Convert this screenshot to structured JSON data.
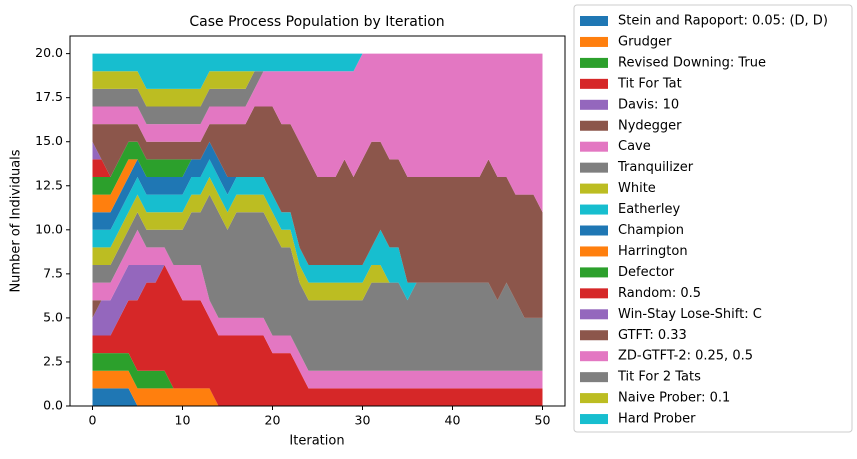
{
  "chart_data": {
    "type": "stackplot",
    "title": "Case Process Population by Iteration",
    "xlabel": "Iteration",
    "ylabel": "Number of Individuals",
    "legend": "outside right",
    "x": [
      0,
      1,
      2,
      3,
      4,
      5,
      6,
      7,
      8,
      9,
      10,
      11,
      12,
      13,
      14,
      15,
      16,
      17,
      18,
      19,
      20,
      21,
      22,
      23,
      24,
      25,
      26,
      27,
      28,
      29,
      30,
      31,
      32,
      33,
      34,
      35,
      36,
      37,
      38,
      39,
      40,
      41,
      42,
      43,
      44,
      45,
      46,
      47,
      48,
      49,
      50
    ],
    "xlim": [
      -2.5,
      52.5
    ],
    "xticks": [
      0,
      10,
      20,
      30,
      40,
      50
    ],
    "ylim": [
      0,
      21
    ],
    "yticks": [
      {
        "value": 0,
        "label": "0.0"
      },
      {
        "value": 2.5,
        "label": "2.5"
      },
      {
        "value": 5,
        "label": "5.0"
      },
      {
        "value": 7.5,
        "label": "7.5"
      },
      {
        "value": 10,
        "label": "10.0"
      },
      {
        "value": 12.5,
        "label": "12.5"
      },
      {
        "value": 15,
        "label": "15.0"
      },
      {
        "value": 17.5,
        "label": "17.5"
      },
      {
        "value": 20,
        "label": "20.0"
      }
    ],
    "series": [
      {
        "name": "Stein and Rapoport: 0.05: (D, D)",
        "color": "#1f77b4",
        "values": [
          1,
          1,
          1,
          1,
          1,
          0,
          0,
          0,
          0,
          0,
          0,
          0,
          0,
          0,
          0,
          0,
          0,
          0,
          0,
          0,
          0,
          0,
          0,
          0,
          0,
          0,
          0,
          0,
          0,
          0,
          0,
          0,
          0,
          0,
          0,
          0,
          0,
          0,
          0,
          0,
          0,
          0,
          0,
          0,
          0,
          0,
          0,
          0,
          0,
          0,
          0
        ]
      },
      {
        "name": "Grudger",
        "color": "#ff7f0e",
        "values": [
          1,
          1,
          1,
          1,
          1,
          1,
          1,
          1,
          1,
          1,
          1,
          1,
          1,
          1,
          0,
          0,
          0,
          0,
          0,
          0,
          0,
          0,
          0,
          0,
          0,
          0,
          0,
          0,
          0,
          0,
          0,
          0,
          0,
          0,
          0,
          0,
          0,
          0,
          0,
          0,
          0,
          0,
          0,
          0,
          0,
          0,
          0,
          0,
          0,
          0,
          0
        ]
      },
      {
        "name": "Revised Downing: True",
        "color": "#2ca02c",
        "values": [
          1,
          1,
          1,
          1,
          1,
          1,
          1,
          1,
          1,
          0,
          0,
          0,
          0,
          0,
          0,
          0,
          0,
          0,
          0,
          0,
          0,
          0,
          0,
          0,
          0,
          0,
          0,
          0,
          0,
          0,
          0,
          0,
          0,
          0,
          0,
          0,
          0,
          0,
          0,
          0,
          0,
          0,
          0,
          0,
          0,
          0,
          0,
          0,
          0,
          0,
          0
        ]
      },
      {
        "name": "Tit For Tat",
        "color": "#d62728",
        "values": [
          1,
          1,
          1,
          2,
          3,
          4,
          5,
          5,
          6,
          6,
          5,
          5,
          5,
          4,
          4,
          4,
          4,
          4,
          4,
          4,
          3,
          3,
          3,
          2,
          1,
          1,
          1,
          1,
          1,
          1,
          1,
          1,
          1,
          1,
          1,
          1,
          1,
          1,
          1,
          1,
          1,
          1,
          1,
          1,
          1,
          1,
          1,
          1,
          1,
          1,
          1
        ]
      },
      {
        "name": "Davis: 10",
        "color": "#9467bd",
        "values": [
          1,
          2,
          2,
          2,
          2,
          2,
          1,
          1,
          0,
          0,
          0,
          0,
          0,
          0,
          0,
          0,
          0,
          0,
          0,
          0,
          0,
          0,
          0,
          0,
          0,
          0,
          0,
          0,
          0,
          0,
          0,
          0,
          0,
          0,
          0,
          0,
          0,
          0,
          0,
          0,
          0,
          0,
          0,
          0,
          0,
          0,
          0,
          0,
          0,
          0,
          0
        ]
      },
      {
        "name": "Nydegger",
        "color": "#8c564b",
        "values": [
          1,
          0,
          0,
          0,
          0,
          0,
          0,
          0,
          0,
          0,
          0,
          0,
          0,
          0,
          0,
          0,
          0,
          0,
          0,
          0,
          0,
          0,
          0,
          0,
          0,
          0,
          0,
          0,
          0,
          0,
          0,
          0,
          0,
          0,
          0,
          0,
          0,
          0,
          0,
          0,
          0,
          0,
          0,
          0,
          0,
          0,
          0,
          0,
          0,
          0,
          0
        ]
      },
      {
        "name": "Cave",
        "color": "#e377c2",
        "values": [
          1,
          1,
          1,
          1,
          1,
          2,
          1,
          1,
          1,
          1,
          2,
          2,
          2,
          1,
          1,
          1,
          1,
          1,
          1,
          1,
          1,
          1,
          1,
          1,
          1,
          1,
          1,
          1,
          1,
          1,
          1,
          1,
          1,
          1,
          1,
          1,
          1,
          1,
          1,
          1,
          1,
          1,
          1,
          1,
          1,
          1,
          1,
          1,
          1,
          1,
          1
        ]
      },
      {
        "name": "Tranquilizer",
        "color": "#7f7f7f",
        "values": [
          1,
          1,
          1,
          1,
          1,
          1,
          1,
          1,
          1,
          2,
          2,
          3,
          3,
          6,
          6,
          5,
          6,
          6,
          6,
          6,
          6,
          5,
          5,
          4,
          4,
          4,
          4,
          4,
          4,
          4,
          4,
          5,
          5,
          5,
          5,
          4,
          5,
          5,
          5,
          5,
          5,
          5,
          5,
          5,
          5,
          4,
          5,
          4,
          3,
          3,
          3
        ]
      },
      {
        "name": "White",
        "color": "#bcbd22",
        "values": [
          1,
          1,
          1,
          1,
          1,
          1,
          1,
          1,
          1,
          1,
          1,
          1,
          1,
          1,
          1,
          1,
          1,
          1,
          1,
          1,
          1,
          1,
          1,
          1,
          1,
          1,
          1,
          1,
          1,
          1,
          1,
          1,
          1,
          0,
          0,
          0,
          0,
          0,
          0,
          0,
          0,
          0,
          0,
          0,
          0,
          0,
          0,
          0,
          0,
          0,
          0
        ]
      },
      {
        "name": "Eatherley",
        "color": "#17becf",
        "values": [
          1,
          1,
          1,
          1,
          1,
          1,
          1,
          1,
          1,
          1,
          1,
          1,
          1,
          1,
          1,
          1,
          1,
          1,
          1,
          1,
          1,
          1,
          1,
          1,
          1,
          1,
          1,
          1,
          1,
          1,
          1,
          1,
          2,
          2,
          2,
          1,
          0,
          0,
          0,
          0,
          0,
          0,
          0,
          0,
          0,
          0,
          0,
          0,
          0,
          0,
          0
        ]
      },
      {
        "name": "Champion",
        "color": "#1f77b4",
        "values": [
          1,
          1,
          1,
          1,
          1,
          1,
          1,
          1,
          1,
          1,
          1,
          1,
          1,
          1,
          1,
          1,
          0,
          0,
          0,
          0,
          0,
          0,
          0,
          0,
          0,
          0,
          0,
          0,
          0,
          0,
          0,
          0,
          0,
          0,
          0,
          0,
          0,
          0,
          0,
          0,
          0,
          0,
          0,
          0,
          0,
          0,
          0,
          0,
          0,
          0,
          0
        ]
      },
      {
        "name": "Harrington",
        "color": "#ff7f0e",
        "values": [
          1,
          1,
          1,
          1,
          1,
          0,
          0,
          0,
          0,
          0,
          0,
          0,
          0,
          0,
          0,
          0,
          0,
          0,
          0,
          0,
          0,
          0,
          0,
          0,
          0,
          0,
          0,
          0,
          0,
          0,
          0,
          0,
          0,
          0,
          0,
          0,
          0,
          0,
          0,
          0,
          0,
          0,
          0,
          0,
          0,
          0,
          0,
          0,
          0,
          0,
          0
        ]
      },
      {
        "name": "Defector",
        "color": "#2ca02c",
        "values": [
          1,
          1,
          1,
          1,
          1,
          1,
          1,
          1,
          1,
          1,
          1,
          0,
          0,
          0,
          0,
          0,
          0,
          0,
          0,
          0,
          0,
          0,
          0,
          0,
          0,
          0,
          0,
          0,
          0,
          0,
          0,
          0,
          0,
          0,
          0,
          0,
          0,
          0,
          0,
          0,
          0,
          0,
          0,
          0,
          0,
          0,
          0,
          0,
          0,
          0,
          0
        ]
      },
      {
        "name": "Random: 0.5",
        "color": "#d62728",
        "values": [
          1,
          1,
          0,
          0,
          0,
          0,
          0,
          0,
          0,
          0,
          0,
          0,
          0,
          0,
          0,
          0,
          0,
          0,
          0,
          0,
          0,
          0,
          0,
          0,
          0,
          0,
          0,
          0,
          0,
          0,
          0,
          0,
          0,
          0,
          0,
          0,
          0,
          0,
          0,
          0,
          0,
          0,
          0,
          0,
          0,
          0,
          0,
          0,
          0,
          0,
          0
        ]
      },
      {
        "name": "Win-Stay Lose-Shift: C",
        "color": "#9467bd",
        "values": [
          1,
          0,
          0,
          0,
          0,
          0,
          0,
          0,
          0,
          0,
          0,
          0,
          0,
          0,
          0,
          0,
          0,
          0,
          0,
          0,
          0,
          0,
          0,
          0,
          0,
          0,
          0,
          0,
          0,
          0,
          0,
          0,
          0,
          0,
          0,
          0,
          0,
          0,
          0,
          0,
          0,
          0,
          0,
          0,
          0,
          0,
          0,
          0,
          0,
          0,
          0
        ]
      },
      {
        "name": "GTFT: 0.33",
        "color": "#8c564b",
        "values": [
          1,
          2,
          3,
          2,
          1,
          1,
          1,
          1,
          1,
          1,
          1,
          1,
          1,
          1,
          2,
          3,
          3,
          3,
          4,
          4,
          5,
          5,
          5,
          6,
          6,
          5,
          5,
          5,
          6,
          5,
          6,
          6,
          5,
          5,
          5,
          6,
          6,
          6,
          6,
          6,
          6,
          6,
          6,
          6,
          7,
          7,
          6,
          6,
          7,
          7,
          6
        ]
      },
      {
        "name": "ZD-GTFT-2: 0.25, 0.5",
        "color": "#e377c2",
        "values": [
          1,
          1,
          1,
          1,
          1,
          1,
          1,
          1,
          1,
          1,
          1,
          1,
          1,
          1,
          1,
          1,
          1,
          1,
          1,
          2,
          2,
          3,
          3,
          4,
          5,
          6,
          6,
          6,
          5,
          6,
          6,
          5,
          5,
          6,
          6,
          7,
          7,
          7,
          7,
          7,
          7,
          7,
          7,
          7,
          6,
          7,
          7,
          8,
          8,
          8,
          9
        ]
      },
      {
        "name": "Tit For 2 Tats",
        "color": "#7f7f7f",
        "values": [
          1,
          1,
          1,
          1,
          1,
          1,
          1,
          1,
          1,
          1,
          1,
          1,
          1,
          1,
          1,
          1,
          1,
          1,
          1,
          0,
          0,
          0,
          0,
          0,
          0,
          0,
          0,
          0,
          0,
          0,
          0,
          0,
          0,
          0,
          0,
          0,
          0,
          0,
          0,
          0,
          0,
          0,
          0,
          0,
          0,
          0,
          0,
          0,
          0,
          0,
          0
        ]
      },
      {
        "name": "Naive Prober: 0.1",
        "color": "#bcbd22",
        "values": [
          1,
          1,
          1,
          1,
          1,
          1,
          1,
          1,
          1,
          1,
          1,
          1,
          1,
          1,
          1,
          1,
          1,
          1,
          0,
          0,
          0,
          0,
          0,
          0,
          0,
          0,
          0,
          0,
          0,
          0,
          0,
          0,
          0,
          0,
          0,
          0,
          0,
          0,
          0,
          0,
          0,
          0,
          0,
          0,
          0,
          0,
          0,
          0,
          0,
          0,
          0
        ]
      },
      {
        "name": "Hard Prober",
        "color": "#17becf",
        "values": [
          1,
          1,
          1,
          1,
          1,
          1,
          2,
          2,
          2,
          2,
          2,
          2,
          2,
          1,
          1,
          1,
          1,
          1,
          1,
          1,
          1,
          1,
          1,
          1,
          1,
          1,
          1,
          1,
          1,
          1,
          0,
          0,
          0,
          0,
          0,
          0,
          0,
          0,
          0,
          0,
          0,
          0,
          0,
          0,
          0,
          0,
          0,
          0,
          0,
          0,
          0
        ]
      }
    ]
  }
}
